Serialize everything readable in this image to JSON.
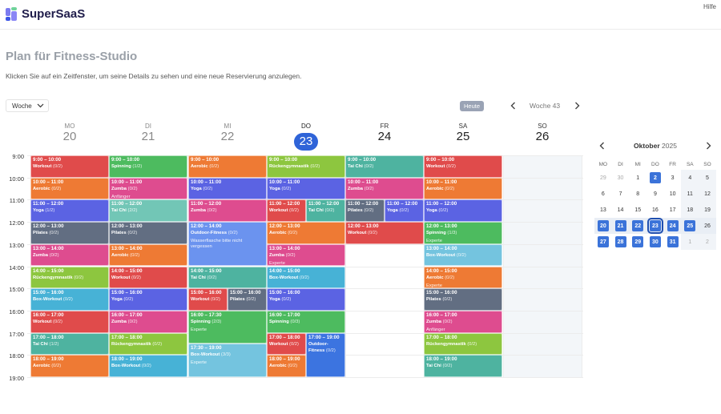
{
  "app": {
    "name": "SuperSaaS",
    "help": "Hilfe"
  },
  "page": {
    "title": "Plan für Fitness-Studio",
    "subtitle": "Klicken Sie auf ein Zeitfenster, um seine Details zu sehen und eine neue Reservierung anzulegen."
  },
  "toolbar": {
    "view": "Woche",
    "today": "Heute",
    "week": "Woche 43"
  },
  "days": [
    {
      "dn": "MO",
      "dd": "20"
    },
    {
      "dn": "DI",
      "dd": "21"
    },
    {
      "dn": "MI",
      "dd": "22"
    },
    {
      "dn": "DO",
      "dd": "23"
    },
    {
      "dn": "FR",
      "dd": "24"
    },
    {
      "dn": "SA",
      "dd": "25"
    },
    {
      "dn": "SO",
      "dd": "26"
    }
  ],
  "hours": [
    "9:00",
    "10:00",
    "11:00",
    "12:00",
    "13:00",
    "14:00",
    "15:00",
    "16:00",
    "17:00",
    "18:00",
    "19:00"
  ],
  "colors": {
    "red": "#e04b4b",
    "orange": "#ee7a34",
    "green": "#4dbb5f",
    "lime": "#8dc63f",
    "teal": "#4eb3a0",
    "mint": "#72c6b6",
    "pink": "#de4c8f",
    "blue": "#5b63e3",
    "slate": "#626e82",
    "sky": "#47b2d6",
    "lightsky": "#74c4df",
    "lightblue": "#6b93ef",
    "royal": "#3c74e0"
  },
  "events": [
    {
      "d": 0,
      "s": 9,
      "e": 10,
      "t": "9:00 – 10:00",
      "n": "Workout",
      "c": "(0/2)",
      "col": "red"
    },
    {
      "d": 0,
      "s": 10,
      "e": 11,
      "t": "10:00 – 11:00",
      "n": "Aerobic",
      "c": "(0/2)",
      "col": "orange"
    },
    {
      "d": 0,
      "s": 11,
      "e": 12,
      "t": "11:00 – 12:00",
      "n": "Yoga",
      "c": "(1/2)",
      "col": "blue"
    },
    {
      "d": 0,
      "s": 12,
      "e": 13,
      "t": "12:00 – 13:00",
      "n": "Pilates",
      "c": "(0/2)",
      "col": "slate"
    },
    {
      "d": 0,
      "s": 13,
      "e": 14,
      "t": "13:00 – 14:00",
      "n": "Zumba",
      "c": "(0/2)",
      "col": "pink"
    },
    {
      "d": 0,
      "s": 14,
      "e": 15,
      "t": "14:00 – 15:00",
      "n": "Rückengymnastik",
      "c": "(0/2)",
      "col": "lime"
    },
    {
      "d": 0,
      "s": 15,
      "e": 16,
      "t": "15:00 – 16:00",
      "n": "Box-Workout",
      "c": "(0/2)",
      "col": "sky"
    },
    {
      "d": 0,
      "s": 16,
      "e": 17,
      "t": "16:00 – 17:00",
      "n": "Workout",
      "c": "(0/2)",
      "col": "red"
    },
    {
      "d": 0,
      "s": 17,
      "e": 18,
      "t": "17:00 – 18:00",
      "n": "Tai Chi",
      "c": "(1/2)",
      "col": "teal"
    },
    {
      "d": 0,
      "s": 18,
      "e": 19,
      "t": "18:00 – 19:00",
      "n": "Aerobic",
      "c": "(0/2)",
      "col": "orange"
    },
    {
      "d": 1,
      "s": 9,
      "e": 10,
      "t": "9:00 – 10:00",
      "n": "Spinning",
      "c": "(1/2)",
      "col": "green"
    },
    {
      "d": 1,
      "s": 10,
      "e": 11,
      "t": "10:00 – 11:00",
      "n": "Zumba",
      "c": "(0/2)",
      "col": "pink",
      "x": "Anfänger"
    },
    {
      "d": 1,
      "s": 11,
      "e": 12,
      "t": "11:00 – 12:00",
      "n": "Tai Chi",
      "c": "(2/2)",
      "col": "mint"
    },
    {
      "d": 1,
      "s": 12,
      "e": 13,
      "t": "12:00 – 13:00",
      "n": "Pilates",
      "c": "(0/2)",
      "col": "slate"
    },
    {
      "d": 1,
      "s": 13,
      "e": 14,
      "t": "13:00 – 14:00",
      "n": "Aerobic",
      "c": "(0/2)",
      "col": "orange"
    },
    {
      "d": 1,
      "s": 14,
      "e": 15,
      "t": "14:00 – 15:00",
      "n": "Workout",
      "c": "(0/2)",
      "col": "red"
    },
    {
      "d": 1,
      "s": 15,
      "e": 16,
      "t": "15:00 – 16:00",
      "n": "Yoga",
      "c": "(0/2)",
      "col": "blue"
    },
    {
      "d": 1,
      "s": 16,
      "e": 17,
      "t": "16:00 – 17:00",
      "n": "Zumba",
      "c": "(0/2)",
      "col": "pink"
    },
    {
      "d": 1,
      "s": 17,
      "e": 18,
      "t": "17:00 – 18:00",
      "n": "Rückengymnastik",
      "c": "(0/2)",
      "col": "lime"
    },
    {
      "d": 1,
      "s": 18,
      "e": 19,
      "t": "18:00 – 19:00",
      "n": "Box-Workout",
      "c": "(0/2)",
      "col": "sky"
    },
    {
      "d": 2,
      "s": 9,
      "e": 10,
      "t": "9:00 – 10:00",
      "n": "Aerobic",
      "c": "(0/2)",
      "col": "orange"
    },
    {
      "d": 2,
      "s": 10,
      "e": 11,
      "t": "10:00 – 11:00",
      "n": "Yoga",
      "c": "(0/2)",
      "col": "blue"
    },
    {
      "d": 2,
      "s": 11,
      "e": 12,
      "t": "11:00 – 12:00",
      "n": "Zumba",
      "c": "(0/2)",
      "col": "pink"
    },
    {
      "d": 2,
      "s": 12,
      "e": 14,
      "t": "12:00 – 14:00",
      "n": "Outdoor-Fitness",
      "c": "(0/2)",
      "col": "lightblue",
      "x": "Wasserflasche bitte nicht vergessen"
    },
    {
      "d": 2,
      "s": 14,
      "e": 15,
      "t": "14:00 – 15:00",
      "n": "Tai Chi",
      "c": "(0/2)",
      "col": "teal"
    },
    {
      "d": 2,
      "s": 15,
      "e": 16,
      "t": "15:00 – 16:00",
      "n": "Workout",
      "c": "(0/2)",
      "col": "red",
      "half": 0
    },
    {
      "d": 2,
      "s": 15,
      "e": 16,
      "t": "15:00 – 16:00",
      "n": "Pilates",
      "c": "(0/2)",
      "col": "slate",
      "half": 1
    },
    {
      "d": 2,
      "s": 16,
      "e": 17.5,
      "t": "16:00 – 17:30",
      "n": "Spinning",
      "c": "(2/3)",
      "col": "green",
      "x": "Experte"
    },
    {
      "d": 2,
      "s": 17.5,
      "e": 19,
      "t": "17:30 – 19:00",
      "n": "Box-Workout",
      "c": "(3/3)",
      "col": "lightsky",
      "x": "Experte"
    },
    {
      "d": 3,
      "s": 9,
      "e": 10,
      "t": "9:00 – 10:00",
      "n": "Rückengymnastik",
      "c": "(0/2)",
      "col": "lime"
    },
    {
      "d": 3,
      "s": 10,
      "e": 11,
      "t": "10:00 – 11:00",
      "n": "Yoga",
      "c": "(0/2)",
      "col": "blue"
    },
    {
      "d": 3,
      "s": 11,
      "e": 12,
      "t": "11:00 – 12:00",
      "n": "Workout",
      "c": "(0/2)",
      "col": "red",
      "half": 0
    },
    {
      "d": 3,
      "s": 11,
      "e": 12,
      "t": "11:00 – 12:00",
      "n": "Tai Chi",
      "c": "(0/2)",
      "col": "teal",
      "half": 1
    },
    {
      "d": 3,
      "s": 12,
      "e": 13,
      "t": "12:00 – 13:00",
      "n": "Aerobic",
      "c": "(0/2)",
      "col": "orange"
    },
    {
      "d": 3,
      "s": 13,
      "e": 14,
      "t": "13:00 – 14:00",
      "n": "Zumba",
      "c": "(0/2)",
      "col": "pink",
      "x": "Experte"
    },
    {
      "d": 3,
      "s": 14,
      "e": 15,
      "t": "14:00 – 15:00",
      "n": "Box-Workout",
      "c": "(0/2)",
      "col": "sky"
    },
    {
      "d": 3,
      "s": 15,
      "e": 16,
      "t": "15:00 – 16:00",
      "n": "Yoga",
      "c": "(0/2)",
      "col": "blue"
    },
    {
      "d": 3,
      "s": 16,
      "e": 17,
      "t": "16:00 – 17:00",
      "n": "Spinning",
      "c": "(0/3)",
      "col": "green"
    },
    {
      "d": 3,
      "s": 17,
      "e": 18,
      "t": "17:00 – 18:00",
      "n": "Workout",
      "c": "(0/2)",
      "col": "red",
      "half": 0
    },
    {
      "d": 3,
      "s": 17,
      "e": 19,
      "t": "17:00 – 19:00",
      "n": "Outdoor-Fitness",
      "c": "(0/2)",
      "col": "royal",
      "half": 1
    },
    {
      "d": 3,
      "s": 18,
      "e": 19,
      "t": "18:00 – 19:00",
      "n": "Aerobic",
      "c": "(0/2)",
      "col": "orange",
      "half": 0
    },
    {
      "d": 4,
      "s": 9,
      "e": 10,
      "t": "9:00 – 10:00",
      "n": "Tai Chi",
      "c": "(0/2)",
      "col": "teal"
    },
    {
      "d": 4,
      "s": 10,
      "e": 11,
      "t": "10:00 – 11:00",
      "n": "Zumba",
      "c": "(0/2)",
      "col": "pink"
    },
    {
      "d": 4,
      "s": 11,
      "e": 12,
      "t": "11:00 – 12:00",
      "n": "Pilates",
      "c": "(0/2)",
      "col": "slate",
      "half": 0
    },
    {
      "d": 4,
      "s": 11,
      "e": 12,
      "t": "11:00 – 12:00",
      "n": "Yoga",
      "c": "(0/2)",
      "col": "blue",
      "half": 1
    },
    {
      "d": 4,
      "s": 12,
      "e": 13,
      "t": "12:00 – 13:00",
      "n": "Workout",
      "c": "(0/2)",
      "col": "red"
    },
    {
      "d": 5,
      "s": 9,
      "e": 10,
      "t": "9:00 – 10:00",
      "n": "Workout",
      "c": "(0/2)",
      "col": "red"
    },
    {
      "d": 5,
      "s": 10,
      "e": 11,
      "t": "10:00 – 11:00",
      "n": "Aerobic",
      "c": "(0/2)",
      "col": "orange"
    },
    {
      "d": 5,
      "s": 11,
      "e": 12,
      "t": "11:00 – 12:00",
      "n": "Yoga",
      "c": "(0/2)",
      "col": "blue"
    },
    {
      "d": 5,
      "s": 12,
      "e": 13,
      "t": "12:00 – 13:00",
      "n": "Spinning",
      "c": "(1/3)",
      "col": "green",
      "x": "Experte"
    },
    {
      "d": 5,
      "s": 13,
      "e": 14,
      "t": "13:00 – 14:00",
      "n": "Box-Workout",
      "c": "(0/2)",
      "col": "lightsky"
    },
    {
      "d": 5,
      "s": 14,
      "e": 15,
      "t": "14:00 – 15:00",
      "n": "Aerobic",
      "c": "(0/2)",
      "col": "orange",
      "x": "Experte"
    },
    {
      "d": 5,
      "s": 15,
      "e": 16,
      "t": "15:00 – 16:00",
      "n": "Pilates",
      "c": "(0/2)",
      "col": "slate"
    },
    {
      "d": 5,
      "s": 16,
      "e": 17,
      "t": "16:00 – 17:00",
      "n": "Zumba",
      "c": "(0/2)",
      "col": "pink",
      "x": "Anfänger"
    },
    {
      "d": 5,
      "s": 17,
      "e": 18,
      "t": "17:00 – 18:00",
      "n": "Rückengymnastik",
      "c": "(0/2)",
      "col": "lime"
    },
    {
      "d": 5,
      "s": 18,
      "e": 19,
      "t": "18:00 – 19:00",
      "n": "Tai Chi",
      "c": "(0/2)",
      "col": "teal"
    }
  ],
  "mini": {
    "month": "Oktober",
    "year": "2025",
    "dow": [
      "MO",
      "DI",
      "MI",
      "DO",
      "FR",
      "SA",
      "SO"
    ],
    "weeks": [
      [
        {
          "v": "29",
          "o": 1
        },
        {
          "v": "30",
          "o": 1
        },
        {
          "v": "1"
        },
        {
          "v": "2",
          "s": 1
        },
        {
          "v": "3"
        },
        {
          "v": "4"
        },
        {
          "v": "5"
        }
      ],
      [
        {
          "v": "6"
        },
        {
          "v": "7"
        },
        {
          "v": "8"
        },
        {
          "v": "9"
        },
        {
          "v": "10"
        },
        {
          "v": "11"
        },
        {
          "v": "12"
        }
      ],
      [
        {
          "v": "13"
        },
        {
          "v": "14"
        },
        {
          "v": "15"
        },
        {
          "v": "16"
        },
        {
          "v": "17"
        },
        {
          "v": "18"
        },
        {
          "v": "19"
        }
      ],
      [
        {
          "v": "20",
          "s": 1
        },
        {
          "v": "21",
          "s": 1
        },
        {
          "v": "22",
          "s": 1
        },
        {
          "v": "23",
          "s": 1,
          "cur": 1
        },
        {
          "v": "24",
          "s": 1
        },
        {
          "v": "25",
          "s": 1
        },
        {
          "v": "26"
        }
      ],
      [
        {
          "v": "27",
          "s": 1
        },
        {
          "v": "28",
          "s": 1
        },
        {
          "v": "29",
          "s": 1
        },
        {
          "v": "30",
          "s": 1
        },
        {
          "v": "31",
          "s": 1
        },
        {
          "v": "1",
          "o": 1
        },
        {
          "v": "2",
          "o": 1
        }
      ]
    ]
  }
}
